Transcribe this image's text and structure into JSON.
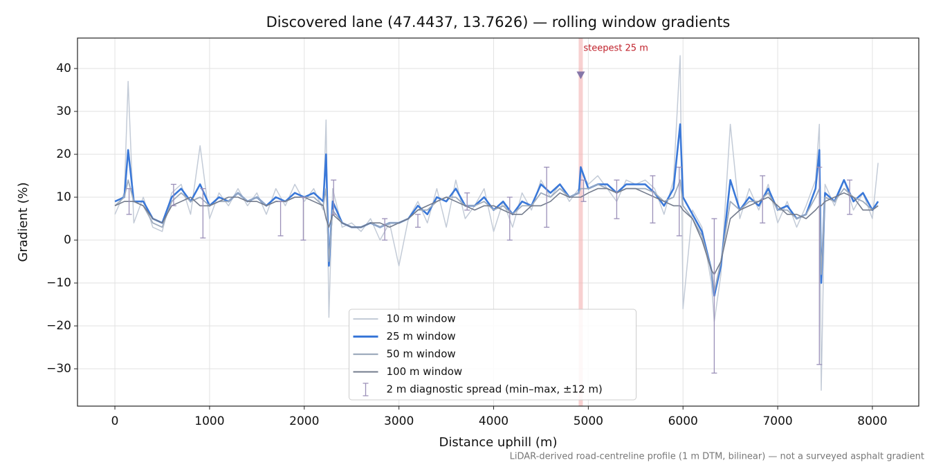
{
  "chart_data": {
    "type": "line",
    "title": "Discovered lane (47.4437, 13.7626) — rolling window gradients",
    "xlabel": "Distance uphill (m)",
    "ylabel": "Gradient (%)",
    "note": "LiDAR-derived road-centreline profile (1 m DTM, bilinear) — not a surveyed asphalt gradient",
    "xlim": [
      -395,
      8490
    ],
    "ylim": [
      -38.7,
      47.1
    ],
    "xticks": [
      0,
      1000,
      2000,
      3000,
      4000,
      5000,
      6000,
      7000,
      8000
    ],
    "yticks": [
      {
        "value": -30,
        "label": "−30"
      },
      {
        "value": -20,
        "label": "−20"
      },
      {
        "value": -10,
        "label": "−10"
      },
      0,
      10,
      20,
      30,
      40
    ],
    "grid": true,
    "legend": "lower center",
    "x": [
      0,
      100,
      140,
      200,
      300,
      400,
      500,
      600,
      700,
      800,
      900,
      1000,
      1100,
      1200,
      1300,
      1400,
      1500,
      1600,
      1700,
      1800,
      1900,
      2000,
      2100,
      2200,
      2230,
      2260,
      2300,
      2400,
      2500,
      2600,
      2700,
      2800,
      2900,
      3000,
      3100,
      3200,
      3300,
      3400,
      3500,
      3600,
      3700,
      3800,
      3900,
      4000,
      4100,
      4200,
      4300,
      4400,
      4500,
      4600,
      4700,
      4800,
      4900,
      4920,
      5000,
      5100,
      5200,
      5300,
      5400,
      5500,
      5600,
      5700,
      5800,
      5900,
      5970,
      6000,
      6100,
      6200,
      6300,
      6330,
      6400,
      6500,
      6600,
      6700,
      6800,
      6900,
      7000,
      7100,
      7200,
      7300,
      7400,
      7440,
      7460,
      7500,
      7600,
      7700,
      7800,
      7900,
      8000,
      8060
    ],
    "series": [
      {
        "name": "10 m window",
        "color": "#c3cbd7",
        "values": [
          6,
          11,
          37,
          4,
          10,
          3,
          2,
          11,
          13,
          6,
          22,
          5,
          11,
          8,
          12,
          8,
          11,
          6,
          12,
          8,
          13,
          9,
          12,
          7,
          28,
          -18,
          12,
          3,
          4,
          2,
          5,
          0,
          4,
          -6,
          5,
          9,
          4,
          12,
          3,
          14,
          5,
          8,
          12,
          2,
          9,
          3,
          11,
          7,
          14,
          10,
          13,
          9,
          12,
          16,
          13,
          15,
          12,
          9,
          14,
          13,
          14,
          12,
          6,
          14,
          43,
          -16,
          7,
          3,
          -10,
          -19,
          -8,
          27,
          5,
          12,
          7,
          13,
          4,
          9,
          3,
          8,
          14,
          27,
          -35,
          13,
          8,
          14,
          7,
          11,
          5,
          18
        ]
      },
      {
        "name": "25 m window",
        "color": "#3a78d8",
        "values": [
          9,
          10,
          21,
          9,
          9,
          5,
          4,
          10,
          12,
          9,
          13,
          8,
          10,
          9,
          11,
          9,
          10,
          8,
          10,
          9,
          11,
          10,
          11,
          9,
          20,
          -6,
          9,
          4,
          3,
          3,
          4,
          3,
          4,
          4,
          5,
          8,
          6,
          10,
          9,
          12,
          8,
          8,
          10,
          7,
          9,
          6,
          9,
          8,
          13,
          11,
          13,
          10,
          11,
          17,
          12,
          13,
          13,
          11,
          13,
          13,
          13,
          11,
          8,
          12,
          27,
          10,
          6,
          2,
          -7,
          -13,
          -6,
          14,
          7,
          10,
          8,
          12,
          7,
          8,
          5,
          6,
          12,
          21,
          -10,
          11,
          9,
          14,
          9,
          11,
          7,
          9
        ]
      },
      {
        "name": "50 m window",
        "color": "#9eabbd",
        "values": [
          8,
          10,
          14,
          9,
          8,
          4,
          3,
          9,
          11,
          9,
          10,
          8,
          9,
          9,
          11,
          9,
          10,
          8,
          9,
          9,
          10,
          10,
          10,
          8,
          12,
          -5,
          7,
          4,
          3,
          3,
          4,
          3,
          4,
          4,
          5,
          7,
          7,
          9,
          10,
          10,
          8,
          8,
          9,
          7,
          8,
          6,
          8,
          8,
          11,
          10,
          12,
          10,
          11,
          12,
          12,
          13,
          12,
          11,
          12,
          12,
          12,
          11,
          9,
          10,
          14,
          8,
          5,
          1,
          -7,
          -12,
          -5,
          9,
          7,
          9,
          9,
          11,
          7,
          7,
          5,
          6,
          10,
          12,
          -8,
          10,
          9,
          12,
          10,
          9,
          7,
          8
        ]
      },
      {
        "name": "100 m window",
        "color": "#737b8c",
        "values": [
          8,
          9,
          9,
          9,
          8,
          5,
          4,
          8,
          9,
          10,
          8,
          8,
          9,
          10,
          10,
          9,
          9,
          8,
          9,
          9,
          10,
          10,
          9,
          8,
          5,
          3,
          6,
          4,
          3,
          3,
          4,
          4,
          3,
          4,
          5,
          7,
          8,
          9,
          10,
          9,
          8,
          7,
          8,
          8,
          7,
          6,
          6,
          8,
          8,
          9,
          11,
          10,
          10,
          10,
          11,
          12,
          12,
          11,
          12,
          12,
          11,
          10,
          9,
          8,
          8,
          7,
          5,
          0,
          -7,
          -8,
          -5,
          5,
          7,
          8,
          9,
          10,
          8,
          6,
          6,
          5,
          7,
          8,
          8,
          9,
          10,
          11,
          10,
          7,
          7,
          8
        ]
      }
    ],
    "errorbars": {
      "name": "2 m diagnostic spread (min–max, ±12 m)",
      "color": "#9a8fb8",
      "x": [
        150,
        620,
        930,
        1750,
        1990,
        2310,
        2850,
        3200,
        3720,
        4170,
        4560,
        4950,
        5300,
        5680,
        5960,
        6330,
        6840,
        7440,
        7760
      ],
      "low": [
        6,
        8,
        0.5,
        1,
        0,
        6,
        0,
        3,
        7,
        0,
        3,
        9,
        5,
        4,
        1,
        -31,
        4,
        -29,
        6
      ],
      "high": [
        12,
        13,
        12,
        9,
        10,
        14,
        5,
        6,
        11,
        10,
        17,
        14,
        14,
        15,
        17,
        5,
        15,
        17,
        14
      ]
    },
    "annotations": [
      {
        "text": "steepest 25 m",
        "x": 4920,
        "y": 38.5,
        "color": "#c0202a",
        "band_color": "#f4b0b0",
        "marker_color": "#8676a8"
      }
    ]
  }
}
